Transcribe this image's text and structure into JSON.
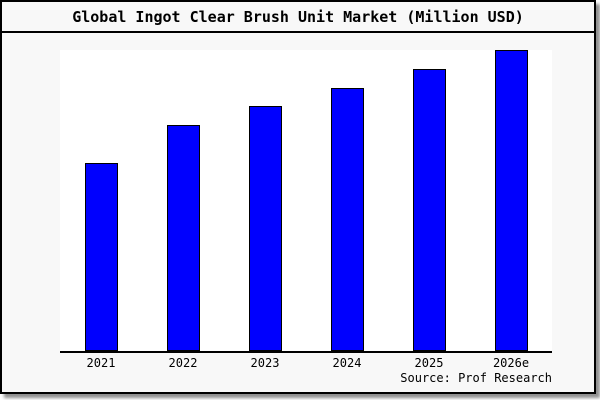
{
  "title": "Global Ingot Clear Brush Unit Market (Million USD)",
  "source_label": "Source: Prof Research",
  "colors": {
    "bar_fill": "#0000fe",
    "bar_edge": "#000000",
    "frame_border": "#000000",
    "frame_background": "#f8f8f8",
    "plot_background": "#ffffff",
    "shadow": "#8f8f8f",
    "text": "#000000"
  },
  "chart_data": {
    "type": "bar",
    "title": "Global Ingot Clear Brush Unit Market (Million USD)",
    "categories": [
      "2021",
      "2022",
      "2023",
      "2024",
      "2025",
      "2026e"
    ],
    "values": [
      100,
      120,
      130,
      140,
      150,
      160
    ],
    "xlabel": "",
    "ylabel": "",
    "ylim": [
      0,
      160
    ],
    "y_axis_visible": false,
    "grid": false,
    "legend": "none",
    "values_note": "No y-axis labels shown in image; values are relative units estimated from bar heights (tallest bar reaches top of plot = 160)."
  }
}
